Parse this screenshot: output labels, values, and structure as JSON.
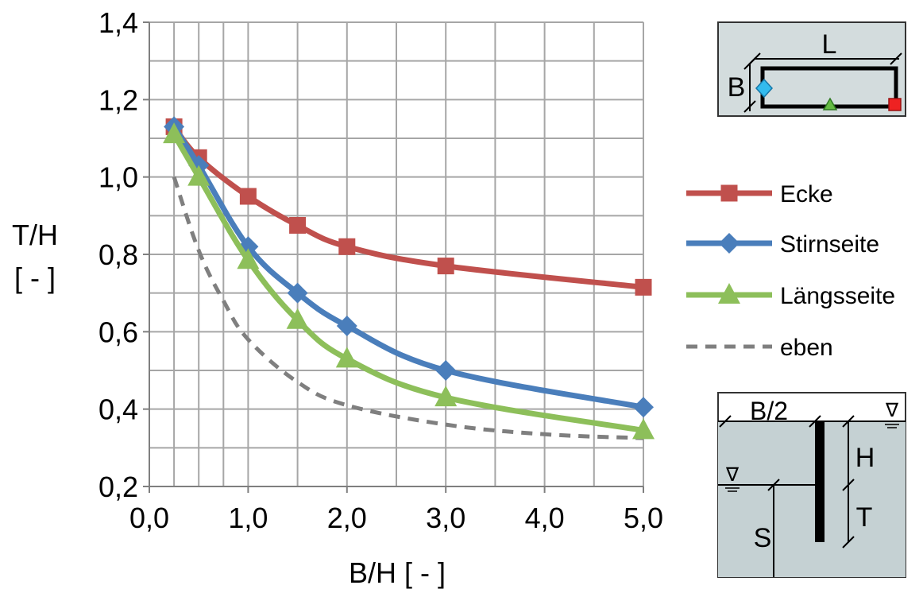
{
  "chart_data": {
    "type": "line",
    "xlabel": "B/H [ - ]",
    "ylabel_line1": "T/H",
    "ylabel_line2": "[ - ]",
    "xlim": [
      0.0,
      5.0
    ],
    "ylim": [
      0.2,
      1.4
    ],
    "x_ticks": [
      "0,0",
      "1,0",
      "2,0",
      "3,0",
      "4,0",
      "5,0"
    ],
    "x_tick_values": [
      0,
      1,
      2,
      3,
      4,
      5
    ],
    "y_ticks": [
      "0,2",
      "0,4",
      "0,6",
      "0,8",
      "1,0",
      "1,2",
      "1,4"
    ],
    "y_tick_values": [
      0.2,
      0.4,
      0.6,
      0.8,
      1.0,
      1.2,
      1.4
    ],
    "grid": true,
    "legend_position": "right",
    "series": [
      {
        "name": "Ecke",
        "color": "#c0504d",
        "marker": "square",
        "dash": false,
        "x": [
          0.25,
          0.5,
          1.0,
          1.5,
          2.0,
          3.0,
          5.0
        ],
        "y": [
          1.13,
          1.05,
          0.95,
          0.875,
          0.82,
          0.77,
          0.715
        ]
      },
      {
        "name": "Stirnseite",
        "color": "#4a7ebb",
        "marker": "diamond",
        "dash": false,
        "x": [
          0.25,
          0.5,
          1.0,
          1.5,
          2.0,
          3.0,
          5.0
        ],
        "y": [
          1.13,
          1.03,
          0.82,
          0.7,
          0.615,
          0.5,
          0.405
        ]
      },
      {
        "name": "Längsseite",
        "color": "#8dbf5a",
        "marker": "triangle",
        "dash": false,
        "x": [
          0.25,
          0.5,
          1.0,
          1.5,
          2.0,
          3.0,
          5.0
        ],
        "y": [
          1.11,
          1.0,
          0.785,
          0.63,
          0.53,
          0.43,
          0.345
        ]
      },
      {
        "name": "eben",
        "color": "#7f7f7f",
        "marker": "none",
        "dash": true,
        "x": [
          0.25,
          0.5,
          0.75,
          1.0,
          1.5,
          2.0,
          3.0,
          4.0,
          5.0
        ],
        "y": [
          1.0,
          0.81,
          0.68,
          0.58,
          0.47,
          0.41,
          0.36,
          0.335,
          0.325
        ]
      }
    ]
  },
  "inset_plan": {
    "label_L": "L",
    "label_B": "B",
    "marker_colors": {
      "corner": "#ee2222",
      "side": "#66bb44",
      "end": "#33bbee"
    }
  },
  "inset_section": {
    "label_B2": "B/2",
    "label_H": "H",
    "label_T": "T",
    "label_S": "S",
    "water_symbol": "∇",
    "water_color": "#c5d1d3"
  }
}
